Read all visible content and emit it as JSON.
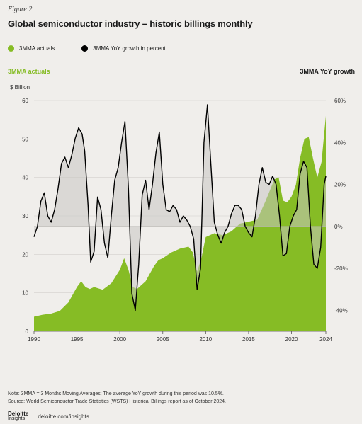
{
  "figure_label": "Figure 2",
  "title": "Global semiconductor industry – historic billings monthly",
  "legend": {
    "actuals_label": "3MMA actuals",
    "growth_label": "3MMA YoY growth in percent",
    "actuals_color": "#86bc25",
    "growth_color": "#000000"
  },
  "axis_titles": {
    "left": "3MMA actuals",
    "right": "3MMA YoY growth",
    "left_unit": "$ Billion"
  },
  "chart_data": {
    "type": "area",
    "x_ticks": [
      1990,
      1995,
      2000,
      2005,
      2010,
      2015,
      2020,
      2024
    ],
    "xlim": [
      1990,
      2024
    ],
    "left_axis": {
      "label": "$ Billion",
      "ylim": [
        0,
        60
      ],
      "ticks": [
        0,
        10,
        20,
        30,
        40,
        50,
        60
      ]
    },
    "right_axis": {
      "ylim": [
        -50,
        60
      ],
      "ticks": [
        "-40%",
        "-20%",
        "0%",
        "20%",
        "40%",
        "60%"
      ],
      "tick_values": [
        -40,
        -20,
        0,
        20,
        40,
        60
      ]
    },
    "grid": "horizontal",
    "series": [
      {
        "name": "3MMA actuals",
        "axis": "left",
        "kind": "area",
        "x": [
          1990,
          1991,
          1992,
          1993,
          1994,
          1995,
          1995.5,
          1996,
          1996.5,
          1997,
          1998,
          1999,
          2000,
          2000.5,
          2001,
          2001.5,
          2002,
          2003,
          2004,
          2004.5,
          2005,
          2006,
          2007,
          2008,
          2008.5,
          2009,
          2009.5,
          2010,
          2011,
          2012,
          2013,
          2014,
          2015,
          2016,
          2017,
          2018,
          2018.5,
          2019,
          2019.5,
          2020,
          2020.5,
          2021,
          2021.5,
          2022,
          2022.5,
          2023,
          2023.5,
          2024
        ],
        "y": [
          3.8,
          4.3,
          4.6,
          5.3,
          7.5,
          11.5,
          13.0,
          11.5,
          11.0,
          11.5,
          10.8,
          12.5,
          16.0,
          19.0,
          16.0,
          11.5,
          11.0,
          13.0,
          17.0,
          18.5,
          19.0,
          20.5,
          21.5,
          22.0,
          20.5,
          15.5,
          19.0,
          24.5,
          25.5,
          25.0,
          26.0,
          28.0,
          28.5,
          29.0,
          34.0,
          39.5,
          40.0,
          34.0,
          33.5,
          35.0,
          38.0,
          45.0,
          50.0,
          50.5,
          45.0,
          40.0,
          44.0,
          56.0
        ]
      },
      {
        "name": "3MMA YoY growth in percent",
        "axis": "right",
        "kind": "line",
        "x": [
          1990,
          1990.4,
          1990.8,
          1991.2,
          1991.6,
          1992,
          1992.4,
          1992.8,
          1993.2,
          1993.6,
          1994,
          1994.4,
          1994.8,
          1995.2,
          1995.6,
          1995.9,
          1996.3,
          1996.6,
          1997,
          1997.4,
          1997.8,
          1998.2,
          1998.6,
          1999,
          1999.4,
          1999.8,
          2000.2,
          2000.6,
          2001,
          2001.4,
          2001.8,
          2002.2,
          2002.6,
          2003,
          2003.4,
          2003.8,
          2004.2,
          2004.6,
          2005,
          2005.4,
          2005.8,
          2006.2,
          2006.6,
          2007,
          2007.4,
          2007.8,
          2008.2,
          2008.6,
          2009,
          2009.4,
          2009.8,
          2010.2,
          2010.6,
          2011,
          2011.4,
          2011.8,
          2012.2,
          2012.6,
          2013,
          2013.4,
          2013.8,
          2014.2,
          2014.6,
          2015,
          2015.4,
          2015.8,
          2016.2,
          2016.6,
          2017,
          2017.4,
          2017.8,
          2018.2,
          2018.6,
          2019,
          2019.4,
          2019.8,
          2020.2,
          2020.6,
          2021,
          2021.4,
          2021.8,
          2022.2,
          2022.6,
          2023,
          2023.4,
          2023.8,
          2024
        ],
        "y": [
          -5,
          0,
          12,
          16,
          5,
          2,
          8,
          18,
          30,
          33,
          28,
          34,
          42,
          47,
          44,
          36,
          10,
          -17,
          -12,
          14,
          8,
          -8,
          -15,
          5,
          22,
          28,
          40,
          50,
          18,
          -32,
          -40,
          -18,
          15,
          22,
          8,
          20,
          35,
          45,
          20,
          8,
          7,
          10,
          8,
          2,
          5,
          3,
          0,
          -6,
          -30,
          -20,
          40,
          58,
          30,
          2,
          -4,
          -8,
          -3,
          0,
          6,
          10,
          10,
          8,
          0,
          -3,
          -5,
          5,
          20,
          28,
          21,
          20,
          24,
          20,
          5,
          -14,
          -13,
          0,
          5,
          8,
          25,
          31,
          28,
          0,
          -18,
          -20,
          -10,
          20,
          24
        ]
      }
    ]
  },
  "note_line1": "Note: 3MMA = 3 Months Moving Averages; The average YoY growth during this period was 10.5%.",
  "note_line2": "Source: World Semiconductor Trade Statistics (WSTS) Historical Billings report as of October 2024.",
  "footer": {
    "logo_main": "Deloitte",
    "logo_sub": "Insights",
    "url": "deloitte.com/insights"
  }
}
